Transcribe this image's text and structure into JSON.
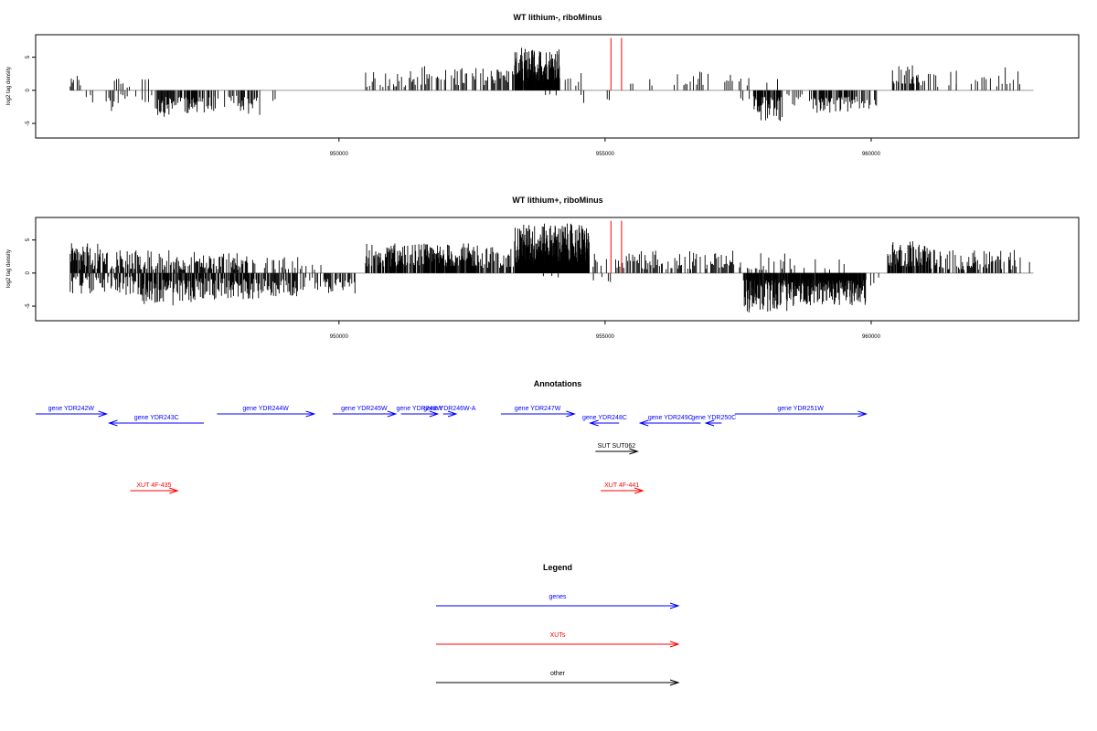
{
  "colors": {
    "gene": "#0000ff",
    "xut": "#ff0000",
    "other": "#000000",
    "baseline": "#999999",
    "marker": "#ff0000"
  },
  "chart_data": [
    {
      "type": "bar",
      "title": "WT lithium-, riboMinus",
      "ylabel": "log2 tag density",
      "xlim": [
        944300,
        963900
      ],
      "ylim": [
        -7.2,
        8.4
      ],
      "xticks": [
        950000,
        955000,
        960000
      ],
      "xtick_labels": [
        "950000",
        "955000",
        "960000"
      ],
      "yticks": [
        -5,
        0,
        5
      ],
      "ytick_labels": [
        "-5",
        "0",
        "5"
      ],
      "markers": [
        955110,
        955310
      ],
      "series": [
        {
          "start": 944950,
          "end": 945050,
          "min": 0.3,
          "max": 1.8,
          "step": 20,
          "sign": 1,
          "density": 0.7
        },
        {
          "start": 945050,
          "end": 945250,
          "min": 0.5,
          "max": 2.8,
          "step": 30,
          "sign": 1,
          "density": 0.6
        },
        {
          "start": 945250,
          "end": 945400,
          "min": 0.5,
          "max": 2.0,
          "step": 40,
          "sign": -1,
          "density": 0.5
        },
        {
          "start": 945600,
          "end": 945850,
          "min": 1.0,
          "max": 3.2,
          "step": 25,
          "sign": -1,
          "density": 0.7
        },
        {
          "start": 945700,
          "end": 946100,
          "min": 0.4,
          "max": 2.6,
          "step": 40,
          "sign": 1,
          "density": 0.5
        },
        {
          "start": 945900,
          "end": 946200,
          "min": 0.4,
          "max": 1.6,
          "step": 40,
          "sign": -1,
          "density": 0.5
        },
        {
          "start": 946300,
          "end": 946500,
          "min": 0.8,
          "max": 3.0,
          "step": 30,
          "sign": 1,
          "density": 0.5
        },
        {
          "start": 946300,
          "end": 946500,
          "min": 0.6,
          "max": 2.2,
          "step": 30,
          "sign": -1,
          "density": 0.5
        },
        {
          "start": 946550,
          "end": 946950,
          "min": 1.0,
          "max": 4.0,
          "step": 15,
          "sign": -1,
          "density": 0.8
        },
        {
          "start": 946950,
          "end": 947650,
          "min": 1.0,
          "max": 3.5,
          "step": 12,
          "sign": -1,
          "density": 0.7
        },
        {
          "start": 947650,
          "end": 948150,
          "min": 0.8,
          "max": 3.0,
          "step": 25,
          "sign": -1,
          "density": 0.5
        },
        {
          "start": 948150,
          "end": 948550,
          "min": 1.0,
          "max": 3.8,
          "step": 15,
          "sign": -1,
          "density": 0.7
        },
        {
          "start": 948600,
          "end": 948800,
          "min": 0.5,
          "max": 2.0,
          "step": 40,
          "sign": -1,
          "density": 0.6
        },
        {
          "start": 950500,
          "end": 951300,
          "min": 0.5,
          "max": 3.0,
          "step": 25,
          "sign": 1,
          "density": 0.5
        },
        {
          "start": 951300,
          "end": 952200,
          "min": 0.8,
          "max": 3.8,
          "step": 22,
          "sign": 1,
          "density": 0.5
        },
        {
          "start": 952200,
          "end": 952900,
          "min": 0.8,
          "max": 3.5,
          "step": 22,
          "sign": 1,
          "density": 0.5
        },
        {
          "start": 952900,
          "end": 953300,
          "min": 1.0,
          "max": 3.5,
          "step": 18,
          "sign": 1,
          "density": 0.6
        },
        {
          "start": 953300,
          "end": 954150,
          "min": 1.5,
          "max": 6.5,
          "step": 6,
          "sign": 1,
          "density": 0.95
        },
        {
          "start": 953800,
          "end": 954100,
          "min": 0.3,
          "max": 1.0,
          "step": 40,
          "sign": -1,
          "density": 0.3
        },
        {
          "start": 954250,
          "end": 954550,
          "min": 0.5,
          "max": 2.8,
          "step": 50,
          "sign": 1,
          "density": 0.5
        },
        {
          "start": 954450,
          "end": 954700,
          "min": 0.5,
          "max": 2.5,
          "step": 50,
          "sign": -1,
          "density": 0.5
        },
        {
          "start": 955000,
          "end": 955100,
          "min": 0.5,
          "max": 2.0,
          "step": 40,
          "sign": -1,
          "density": 0.5
        },
        {
          "start": 955480,
          "end": 955520,
          "min": 1.0,
          "max": 1.0,
          "step": 40,
          "sign": 1,
          "density": 1.0
        },
        {
          "start": 955800,
          "end": 955900,
          "min": 0.5,
          "max": 1.8,
          "step": 40,
          "sign": 1,
          "density": 0.5
        },
        {
          "start": 956300,
          "end": 956900,
          "min": 0.8,
          "max": 3.2,
          "step": 30,
          "sign": 1,
          "density": 0.5
        },
        {
          "start": 956900,
          "end": 957400,
          "min": 0.5,
          "max": 2.5,
          "step": 35,
          "sign": 1,
          "density": 0.4
        },
        {
          "start": 957400,
          "end": 957700,
          "min": 0.5,
          "max": 3.0,
          "step": 30,
          "sign": 1,
          "density": 0.5
        },
        {
          "start": 957550,
          "end": 957800,
          "min": 0.4,
          "max": 1.6,
          "step": 40,
          "sign": -1,
          "density": 0.4
        },
        {
          "start": 957800,
          "end": 958350,
          "min": 1.0,
          "max": 5.0,
          "step": 12,
          "sign": -1,
          "density": 0.8
        },
        {
          "start": 958000,
          "end": 958300,
          "min": 0.5,
          "max": 2.0,
          "step": 40,
          "sign": 1,
          "density": 0.3
        },
        {
          "start": 958350,
          "end": 958900,
          "min": 0.5,
          "max": 2.5,
          "step": 35,
          "sign": -1,
          "density": 0.5
        },
        {
          "start": 958900,
          "end": 959700,
          "min": 1.0,
          "max": 3.5,
          "step": 12,
          "sign": -1,
          "density": 0.8
        },
        {
          "start": 959700,
          "end": 960100,
          "min": 0.8,
          "max": 3.0,
          "step": 20,
          "sign": -1,
          "density": 0.6
        },
        {
          "start": 960400,
          "end": 960900,
          "min": 1.0,
          "max": 4.0,
          "step": 15,
          "sign": 1,
          "density": 0.7
        },
        {
          "start": 960900,
          "end": 961600,
          "min": 0.5,
          "max": 3.0,
          "step": 35,
          "sign": 1,
          "density": 0.5
        },
        {
          "start": 961600,
          "end": 962400,
          "min": 0.5,
          "max": 3.0,
          "step": 40,
          "sign": 1,
          "density": 0.4
        },
        {
          "start": 962400,
          "end": 962800,
          "min": 0.8,
          "max": 3.5,
          "step": 30,
          "sign": 1,
          "density": 0.5
        }
      ]
    },
    {
      "type": "bar",
      "title": "WT lithium+, riboMinus",
      "ylabel": "log2 tag density",
      "xlim": [
        944300,
        963900
      ],
      "ylim": [
        -7.2,
        8.4
      ],
      "xticks": [
        950000,
        955000,
        960000
      ],
      "xtick_labels": [
        "950000",
        "955000",
        "960000"
      ],
      "yticks": [
        -5,
        0,
        5
      ],
      "ytick_labels": [
        "-5",
        "0",
        "5"
      ],
      "markers": [
        955110,
        955310
      ],
      "series": [
        {
          "start": 944950,
          "end": 945600,
          "min": 0.5,
          "max": 4.5,
          "step": 12,
          "sign": 1,
          "density": 0.8
        },
        {
          "start": 945600,
          "end": 946300,
          "min": 0.5,
          "max": 3.5,
          "step": 15,
          "sign": 1,
          "density": 0.6
        },
        {
          "start": 944950,
          "end": 946300,
          "min": 0.5,
          "max": 3.5,
          "step": 15,
          "sign": -1,
          "density": 0.7
        },
        {
          "start": 946300,
          "end": 947300,
          "min": 0.5,
          "max": 3.5,
          "step": 14,
          "sign": 1,
          "density": 0.6
        },
        {
          "start": 946300,
          "end": 947300,
          "min": 1.0,
          "max": 5.0,
          "step": 10,
          "sign": -1,
          "density": 0.8
        },
        {
          "start": 947300,
          "end": 948500,
          "min": 0.5,
          "max": 3.0,
          "step": 14,
          "sign": 1,
          "density": 0.6
        },
        {
          "start": 947300,
          "end": 948500,
          "min": 0.8,
          "max": 4.0,
          "step": 12,
          "sign": -1,
          "density": 0.8
        },
        {
          "start": 948500,
          "end": 949300,
          "min": 0.5,
          "max": 2.5,
          "step": 25,
          "sign": 1,
          "density": 0.5
        },
        {
          "start": 948500,
          "end": 949300,
          "min": 0.8,
          "max": 3.5,
          "step": 15,
          "sign": -1,
          "density": 0.8
        },
        {
          "start": 949300,
          "end": 949700,
          "min": 0.5,
          "max": 2.0,
          "step": 40,
          "sign": 1,
          "density": 0.5
        },
        {
          "start": 949300,
          "end": 949700,
          "min": 0.6,
          "max": 2.6,
          "step": 25,
          "sign": -1,
          "density": 0.5
        },
        {
          "start": 949700,
          "end": 950300,
          "min": 0.8,
          "max": 3.2,
          "step": 15,
          "sign": -1,
          "density": 0.7
        },
        {
          "start": 950500,
          "end": 951500,
          "min": 1.0,
          "max": 4.5,
          "step": 10,
          "sign": 1,
          "density": 0.85
        },
        {
          "start": 951500,
          "end": 952600,
          "min": 1.0,
          "max": 4.5,
          "step": 10,
          "sign": 1,
          "density": 0.85
        },
        {
          "start": 952600,
          "end": 953300,
          "min": 0.8,
          "max": 4.0,
          "step": 15,
          "sign": 1,
          "density": 0.7
        },
        {
          "start": 953300,
          "end": 954700,
          "min": 1.5,
          "max": 7.5,
          "step": 5,
          "sign": 1,
          "density": 1.0
        },
        {
          "start": 953800,
          "end": 954300,
          "min": 0.3,
          "max": 1.2,
          "step": 40,
          "sign": -1,
          "density": 0.3
        },
        {
          "start": 954700,
          "end": 955500,
          "min": 0.5,
          "max": 3.0,
          "step": 25,
          "sign": 1,
          "density": 0.5
        },
        {
          "start": 954700,
          "end": 955100,
          "min": 0.5,
          "max": 2.0,
          "step": 40,
          "sign": -1,
          "density": 0.4
        },
        {
          "start": 955500,
          "end": 956500,
          "min": 0.5,
          "max": 3.5,
          "step": 18,
          "sign": 1,
          "density": 0.6
        },
        {
          "start": 956500,
          "end": 957600,
          "min": 0.5,
          "max": 3.5,
          "step": 18,
          "sign": 1,
          "density": 0.55
        },
        {
          "start": 957600,
          "end": 958500,
          "min": 0.5,
          "max": 3.0,
          "step": 25,
          "sign": 1,
          "density": 0.4
        },
        {
          "start": 957600,
          "end": 958500,
          "min": 1.0,
          "max": 6.0,
          "step": 8,
          "sign": -1,
          "density": 0.9
        },
        {
          "start": 958500,
          "end": 959900,
          "min": 1.0,
          "max": 5.0,
          "step": 7,
          "sign": -1,
          "density": 0.95
        },
        {
          "start": 958500,
          "end": 959500,
          "min": 0.5,
          "max": 2.5,
          "step": 30,
          "sign": 1,
          "density": 0.3
        },
        {
          "start": 959900,
          "end": 960200,
          "min": 0.5,
          "max": 2.0,
          "step": 30,
          "sign": -1,
          "density": 0.5
        },
        {
          "start": 960300,
          "end": 961100,
          "min": 1.0,
          "max": 5.0,
          "step": 10,
          "sign": 1,
          "density": 0.85
        },
        {
          "start": 961100,
          "end": 962700,
          "min": 0.5,
          "max": 3.5,
          "step": 15,
          "sign": 1,
          "density": 0.6
        },
        {
          "start": 962700,
          "end": 963000,
          "min": 0.8,
          "max": 3.0,
          "step": 25,
          "sign": 1,
          "density": 0.5
        }
      ]
    }
  ],
  "annotations": {
    "title": "Annotations",
    "xlim": [
      944300,
      963900
    ],
    "features": [
      {
        "label": "gene YDR242W",
        "kind": "gene",
        "start": 944300,
        "end": 945650,
        "strand": "+",
        "row": 0
      },
      {
        "label": "gene YDR243C",
        "kind": "gene",
        "start": 945700,
        "end": 947500,
        "strand": "-",
        "row": 1
      },
      {
        "label": "gene YDR244W",
        "kind": "gene",
        "start": 947750,
        "end": 949600,
        "strand": "+",
        "row": 0
      },
      {
        "label": "gene YDR245W",
        "kind": "gene",
        "start": 949950,
        "end": 951150,
        "strand": "+",
        "row": 0
      },
      {
        "label": "gene YDR246W",
        "kind": "gene",
        "start": 951250,
        "end": 951950,
        "strand": "+",
        "row": 0
      },
      {
        "label": "gene YDR246W-A",
        "kind": "gene",
        "start": 952050,
        "end": 952300,
        "strand": "+",
        "row": 0
      },
      {
        "label": "gene YDR247W",
        "kind": "gene",
        "start": 953150,
        "end": 954550,
        "strand": "+",
        "row": 0
      },
      {
        "label": "gene YDR248C",
        "kind": "gene",
        "start": 954850,
        "end": 955400,
        "strand": "-",
        "row": 1
      },
      {
        "label": "gene YDR249C",
        "kind": "gene",
        "start": 955800,
        "end": 956950,
        "strand": "-",
        "row": 1
      },
      {
        "label": "gene YDR250C",
        "kind": "gene",
        "start": 957050,
        "end": 957350,
        "strand": "-",
        "row": 1
      },
      {
        "label": "gene YDR251W",
        "kind": "gene",
        "start": 957600,
        "end": 960100,
        "strand": "+",
        "row": 0
      },
      {
        "label": "SUT SUT062",
        "kind": "other",
        "start": 954950,
        "end": 955750,
        "strand": "+",
        "row": 2
      },
      {
        "label": "XUT 4F-435",
        "kind": "xut",
        "start": 946100,
        "end": 947000,
        "strand": "+",
        "row": 3
      },
      {
        "label": "XUT 4F-441",
        "kind": "xut",
        "start": 955050,
        "end": 955850,
        "strand": "+",
        "row": 3
      }
    ]
  },
  "legend": {
    "title": "Legend",
    "items": [
      {
        "label": "genes",
        "kind": "gene"
      },
      {
        "label": "XUTs",
        "kind": "xut"
      },
      {
        "label": "other",
        "kind": "other"
      }
    ]
  }
}
